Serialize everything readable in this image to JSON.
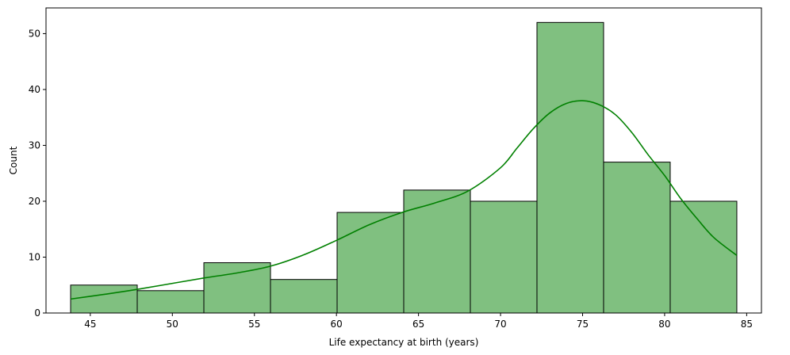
{
  "chart_data": {
    "type": "bar",
    "subtype": "histogram-with-kde",
    "xlabel": "Life expectancy at birth (years)",
    "ylabel": "Count",
    "bin_edges": [
      43.8,
      47.86,
      51.92,
      55.98,
      60.04,
      64.1,
      68.16,
      72.22,
      76.28,
      80.34,
      84.4
    ],
    "counts": [
      5,
      4,
      9,
      6,
      18,
      22,
      20,
      52,
      27,
      20
    ],
    "xlim": [
      42.3,
      85.9
    ],
    "ylim": [
      0,
      54.6
    ],
    "xticks": [
      45,
      50,
      55,
      60,
      65,
      70,
      75,
      80,
      85
    ],
    "yticks": [
      0,
      10,
      20,
      30,
      40,
      50
    ],
    "kde": {
      "x": [
        43.8,
        46,
        48,
        50,
        52,
        54,
        56,
        58,
        60,
        62,
        64,
        66,
        68,
        70,
        71,
        72,
        73,
        74,
        75,
        76,
        77,
        78,
        79,
        80,
        81,
        82,
        83,
        84.4
      ],
      "y": [
        2.5,
        3.4,
        4.3,
        5.3,
        6.3,
        7.2,
        8.4,
        10.4,
        13.0,
        15.8,
        18.0,
        19.7,
        21.8,
        26.0,
        29.5,
        33.0,
        35.8,
        37.5,
        38.0,
        37.3,
        35.5,
        32.3,
        28.3,
        24.6,
        20.4,
        16.8,
        13.5,
        10.3
      ]
    },
    "grid": false,
    "legend": "none",
    "colors": {
      "bar_fill": "#80c080",
      "bar_edge": "#000000",
      "kde_line": "#008000"
    }
  }
}
